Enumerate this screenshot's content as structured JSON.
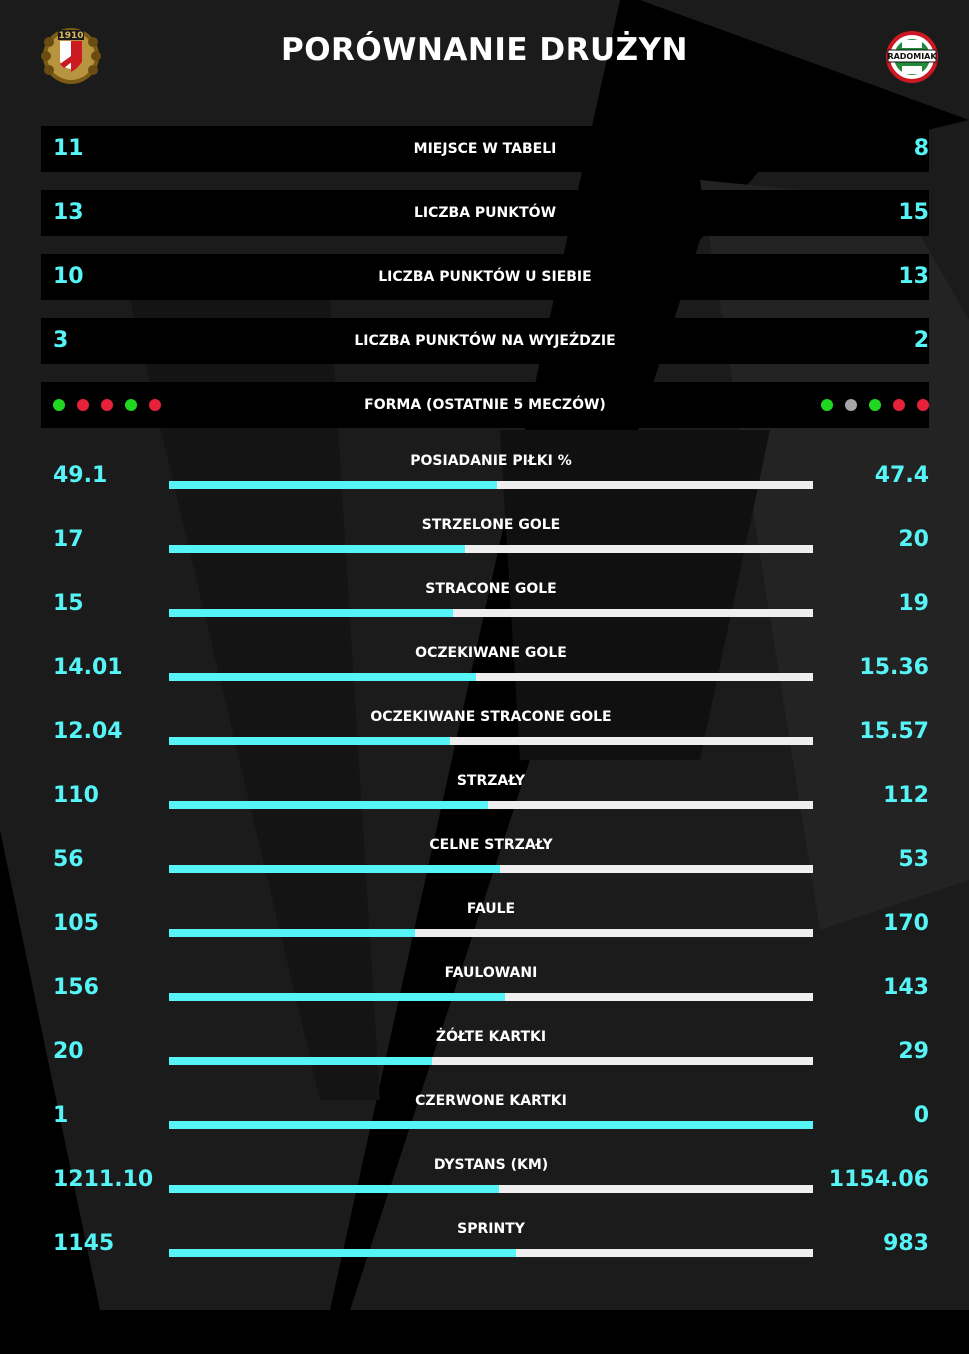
{
  "page": {
    "title": "PORÓWNANIE DRUŻYN",
    "home_logo": "widzew-lodz-crest-icon",
    "away_logo": "radomiak-radom-crest-icon",
    "home_logo_text": "1910",
    "away_logo_text": "RADOMIAK"
  },
  "colors": {
    "accent": "#56f4f6",
    "track": "#eeeeee",
    "win": "#21d821",
    "draw": "#a5a5a5",
    "loss": "#e8213a",
    "background": "#000000",
    "panel_bg_shape": "#1c1c1c"
  },
  "table_rows": [
    {
      "label": "MIEJSCE W TABELI",
      "home": "11",
      "away": "8"
    },
    {
      "label": "LICZBA PUNKTÓW",
      "home": "13",
      "away": "15"
    },
    {
      "label": "LICZBA PUNKTÓW U SIEBIE",
      "home": "10",
      "away": "13"
    },
    {
      "label": "LICZBA PUNKTÓW NA WYJEŹDZIE",
      "home": "3",
      "away": "2"
    }
  ],
  "form": {
    "label": "FORMA (OSTATNIE 5 MECZÓW)",
    "home": [
      "win",
      "loss",
      "loss",
      "win",
      "loss"
    ],
    "away": [
      "win",
      "draw",
      "win",
      "loss",
      "loss"
    ]
  },
  "stats": [
    {
      "label": "POSIADANIE PIŁKI %",
      "home": "49.1",
      "away": "47.4"
    },
    {
      "label": "STRZELONE GOLE",
      "home": "17",
      "away": "20"
    },
    {
      "label": "STRACONE GOLE",
      "home": "15",
      "away": "19"
    },
    {
      "label": "OCZEKIWANE GOLE",
      "home": "14.01",
      "away": "15.36"
    },
    {
      "label": "OCZEKIWANE STRACONE GOLE",
      "home": "12.04",
      "away": "15.57"
    },
    {
      "label": "STRZAŁY",
      "home": "110",
      "away": "112"
    },
    {
      "label": "CELNE STRZAŁY",
      "home": "56",
      "away": "53"
    },
    {
      "label": "FAULE",
      "home": "105",
      "away": "170"
    },
    {
      "label": "FAULOWANI",
      "home": "156",
      "away": "143"
    },
    {
      "label": "ŻÓŁTE KARTKI",
      "home": "20",
      "away": "29"
    },
    {
      "label": "CZERWONE KARTKI",
      "home": "1",
      "away": "0"
    },
    {
      "label": "DYSTANS (KM)",
      "home": "1211.10",
      "away": "1154.06"
    },
    {
      "label": "SPRINTY",
      "home": "1145",
      "away": "983"
    }
  ]
}
